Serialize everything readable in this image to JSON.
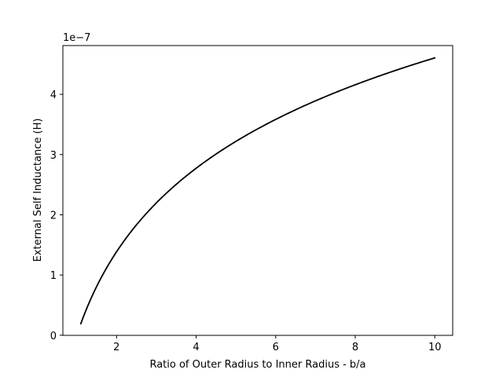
{
  "chart_data": {
    "type": "line",
    "title": "",
    "xlabel": "Ratio of Outer Radius to Inner Radius - b/a",
    "ylabel": "External Self Inductance (H)",
    "offset_text": "1e−7",
    "xlim": [
      0.65,
      10.45
    ],
    "ylim": [
      -2.1e-10,
      4.81e-07
    ],
    "xticks": [
      2,
      4,
      6,
      8,
      10
    ],
    "xtick_labels": [
      "2",
      "4",
      "6",
      "8",
      "10"
    ],
    "yticks": [
      0,
      1e-07,
      2e-07,
      3e-07,
      4e-07
    ],
    "ytick_labels": [
      "0",
      "1",
      "2",
      "3",
      "4"
    ],
    "grid": false,
    "series": [
      {
        "color": "#000000",
        "formula": "2e-7 * ln(x)",
        "x_range": [
          1.1,
          10
        ],
        "x": [
          1.1,
          1.25,
          1.5,
          1.75,
          2,
          2.5,
          3,
          3.5,
          4,
          4.5,
          5,
          5.5,
          6,
          6.5,
          7,
          7.5,
          8,
          8.5,
          9,
          9.5,
          10
        ],
        "y": [
          1.906e-08,
          4.463e-08,
          8.109e-08,
          1.119e-07,
          1.386e-07,
          1.833e-07,
          2.197e-07,
          2.506e-07,
          2.773e-07,
          3.008e-07,
          3.219e-07,
          3.409e-07,
          3.584e-07,
          3.744e-07,
          3.892e-07,
          4.03e-07,
          4.159e-07,
          4.28e-07,
          4.394e-07,
          4.503e-07,
          4.605e-07
        ]
      }
    ]
  }
}
